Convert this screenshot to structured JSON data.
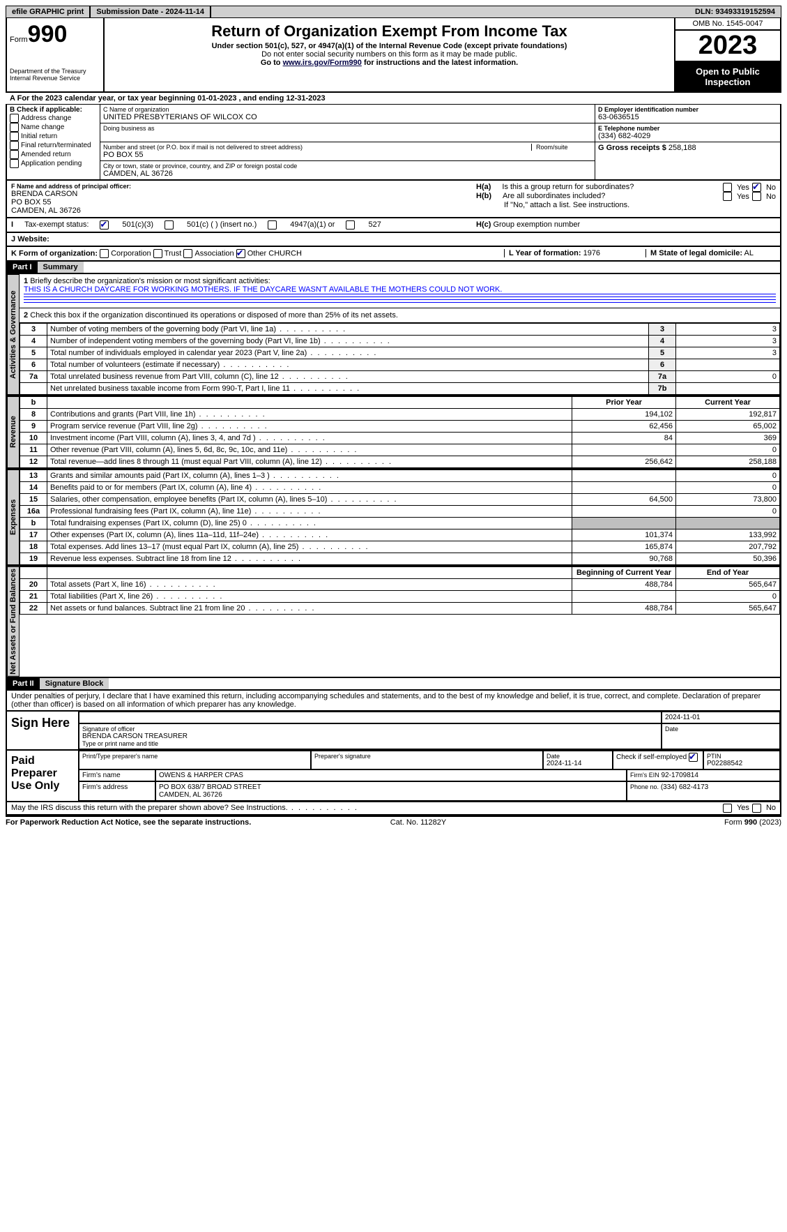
{
  "topbar": {
    "efile": "efile GRAPHIC print",
    "submission": "Submission Date - 2024-11-14",
    "dln": "DLN: 93493319152594"
  },
  "header": {
    "form_word": "Form",
    "form_num": "990",
    "dept1": "Department of the Treasury",
    "dept2": "Internal Revenue Service",
    "title": "Return of Organization Exempt From Income Tax",
    "sub1": "Under section 501(c), 527, or 4947(a)(1) of the Internal Revenue Code (except private foundations)",
    "sub2": "Do not enter social security numbers on this form as it may be made public.",
    "sub3_pre": "Go to ",
    "sub3_link": "www.irs.gov/Form990",
    "sub3_post": " for instructions and the latest information.",
    "omb": "OMB No. 1545-0047",
    "year": "2023",
    "open": "Open to Public Inspection"
  },
  "A_line": "For the 2023 calendar year, or tax year beginning 01-01-2023   , and ending 12-31-2023",
  "B": {
    "label": "B Check if applicable:",
    "opts": [
      "Address change",
      "Name change",
      "Initial return",
      "Final return/terminated",
      "Amended return",
      "Application pending"
    ]
  },
  "C": {
    "name_label": "C Name of organization",
    "name": "UNITED PRESBYTERIANS OF WILCOX CO",
    "dba_label": "Doing business as",
    "street_label": "Number and street (or P.O. box if mail is not delivered to street address)",
    "room_label": "Room/suite",
    "street": "PO BOX 55",
    "city_label": "City or town, state or province, country, and ZIP or foreign postal code",
    "city": "CAMDEN, AL  36726"
  },
  "D": {
    "label": "D Employer identification number",
    "val": "63-0636515"
  },
  "E": {
    "label": "E Telephone number",
    "val": "(334) 682-4029"
  },
  "G": {
    "label": "G Gross receipts $",
    "val": "258,188"
  },
  "F": {
    "label": "F  Name and address of principal officer:",
    "line1": "BRENDA CARSON",
    "line2": "PO BOX 55",
    "line3": "CAMDEN, AL  36726"
  },
  "H": {
    "a_q": "Is this a group return for subordinates?",
    "b_q": "Are all subordinates included?",
    "b_note": "If \"No,\" attach a list. See instructions.",
    "c": "Group exemption number",
    "yes": "Yes",
    "no": "No",
    "Ha": "H(a)",
    "Hb": "H(b)",
    "Hc": "H(c)"
  },
  "I": {
    "label": "Tax-exempt status:",
    "o1": "501(c)(3)",
    "o2": "501(c) (  ) (insert no.)",
    "o3": "4947(a)(1) or",
    "o4": "527"
  },
  "J": {
    "label": "Website:"
  },
  "K": {
    "label": "K Form of organization:",
    "o1": "Corporation",
    "o2": "Trust",
    "o3": "Association",
    "o4": "Other",
    "o4v": "CHURCH"
  },
  "L": {
    "label": "L Year of formation:",
    "val": "1976"
  },
  "M": {
    "label": "M State of legal domicile:",
    "val": "AL"
  },
  "part1": {
    "num": "Part I",
    "title": "Summary"
  },
  "s1": {
    "q1": "Briefly describe the organization's mission or most significant activities:",
    "a1": "THIS IS A CHURCH DAYCARE FOR WORKING MOTHERS. IF THE DAYCARE WASN'T AVAILABLE THE MOTHERS COULD NOT WORK.",
    "q2": "Check this box        if the organization discontinued its operations or disposed of more than 25% of its net assets.",
    "rows": [
      {
        "n": "3",
        "t": "Number of voting members of the governing body (Part VI, line 1a)",
        "b": "3",
        "v": "3"
      },
      {
        "n": "4",
        "t": "Number of independent voting members of the governing body (Part VI, line 1b)",
        "b": "4",
        "v": "3"
      },
      {
        "n": "5",
        "t": "Total number of individuals employed in calendar year 2023 (Part V, line 2a)",
        "b": "5",
        "v": "3"
      },
      {
        "n": "6",
        "t": "Total number of volunteers (estimate if necessary)",
        "b": "6",
        "v": ""
      },
      {
        "n": "7a",
        "t": "Total unrelated business revenue from Part VIII, column (C), line 12",
        "b": "7a",
        "v": "0"
      },
      {
        "n": "",
        "t": "Net unrelated business taxable income from Form 990-T, Part I, line 11",
        "b": "7b",
        "v": ""
      }
    ],
    "hdr_b": "b",
    "hdr_prior": "Prior Year",
    "hdr_curr": "Current Year",
    "rev": [
      {
        "n": "8",
        "t": "Contributions and grants (Part VIII, line 1h)",
        "p": "194,102",
        "c": "192,817"
      },
      {
        "n": "9",
        "t": "Program service revenue (Part VIII, line 2g)",
        "p": "62,456",
        "c": "65,002"
      },
      {
        "n": "10",
        "t": "Investment income (Part VIII, column (A), lines 3, 4, and 7d )",
        "p": "84",
        "c": "369"
      },
      {
        "n": "11",
        "t": "Other revenue (Part VIII, column (A), lines 5, 6d, 8c, 9c, 10c, and 11e)",
        "p": "",
        "c": "0"
      },
      {
        "n": "12",
        "t": "Total revenue—add lines 8 through 11 (must equal Part VIII, column (A), line 12)",
        "p": "256,642",
        "c": "258,188"
      }
    ],
    "exp": [
      {
        "n": "13",
        "t": "Grants and similar amounts paid (Part IX, column (A), lines 1–3 )",
        "p": "",
        "c": "0"
      },
      {
        "n": "14",
        "t": "Benefits paid to or for members (Part IX, column (A), line 4)",
        "p": "",
        "c": "0"
      },
      {
        "n": "15",
        "t": "Salaries, other compensation, employee benefits (Part IX, column (A), lines 5–10)",
        "p": "64,500",
        "c": "73,800"
      },
      {
        "n": "16a",
        "t": "Professional fundraising fees (Part IX, column (A), line 11e)",
        "p": "",
        "c": "0"
      },
      {
        "n": "b",
        "t": "Total fundraising expenses (Part IX, column (D), line 25) 0",
        "p": "GREY",
        "c": "GREY"
      },
      {
        "n": "17",
        "t": "Other expenses (Part IX, column (A), lines 11a–11d, 11f–24e)",
        "p": "101,374",
        "c": "133,992"
      },
      {
        "n": "18",
        "t": "Total expenses. Add lines 13–17 (must equal Part IX, column (A), line 25)",
        "p": "165,874",
        "c": "207,792"
      },
      {
        "n": "19",
        "t": "Revenue less expenses. Subtract line 18 from line 12",
        "p": "90,768",
        "c": "50,396"
      }
    ],
    "na_hdr_b": "Beginning of Current Year",
    "na_hdr_e": "End of Year",
    "na": [
      {
        "n": "20",
        "t": "Total assets (Part X, line 16)",
        "p": "488,784",
        "c": "565,647"
      },
      {
        "n": "21",
        "t": "Total liabilities (Part X, line 26)",
        "p": "",
        "c": "0"
      },
      {
        "n": "22",
        "t": "Net assets or fund balances. Subtract line 21 from line 20",
        "p": "488,784",
        "c": "565,647"
      }
    ],
    "side_ag": "Activities & Governance",
    "side_rev": "Revenue",
    "side_exp": "Expenses",
    "side_na": "Net Assets or Fund Balances"
  },
  "part2": {
    "num": "Part II",
    "title": "Signature Block"
  },
  "sig": {
    "decl": "Under penalties of perjury, I declare that I have examined this return, including accompanying schedules and statements, and to the best of my knowledge and belief, it is true, correct, and complete. Declaration of preparer (other than officer) is based on all information of which preparer has any knowledge.",
    "sign_here": "Sign Here",
    "off_sig_label": "Signature of officer",
    "off_name": "BRENDA CARSON  TREASURER",
    "off_name_label": "Type or print name and title",
    "date_label": "Date",
    "date1": "2024-11-01",
    "paid": "Paid Preparer Use Only",
    "prep_name_label": "Print/Type preparer's name",
    "prep_sig_label": "Preparer's signature",
    "prep_date": "2024-11-14",
    "self_emp": "Check         if self-employed",
    "ptin_label": "PTIN",
    "ptin": "P02288542",
    "firm_name_label": "Firm's name",
    "firm_name": "OWENS & HARPER CPAS",
    "firm_ein_label": "Firm's EIN",
    "firm_ein": "92-1709814",
    "firm_addr_label": "Firm's address",
    "firm_addr1": "PO BOX 638/7 BROAD STREET",
    "firm_addr2": "CAMDEN, AL  36726",
    "phone_label": "Phone no.",
    "phone": "(334) 682-4173",
    "discuss": "May the IRS discuss this return with the preparer shown above? See Instructions."
  },
  "footer": {
    "left": "For Paperwork Reduction Act Notice, see the separate instructions.",
    "mid": "Cat. No. 11282Y",
    "right_pre": "Form ",
    "right_b": "990",
    "right_post": " (2023)"
  },
  "labels": {
    "I_label": "I",
    "J_label": "J",
    "A_label": "A",
    "one": "1",
    "two": "2"
  }
}
